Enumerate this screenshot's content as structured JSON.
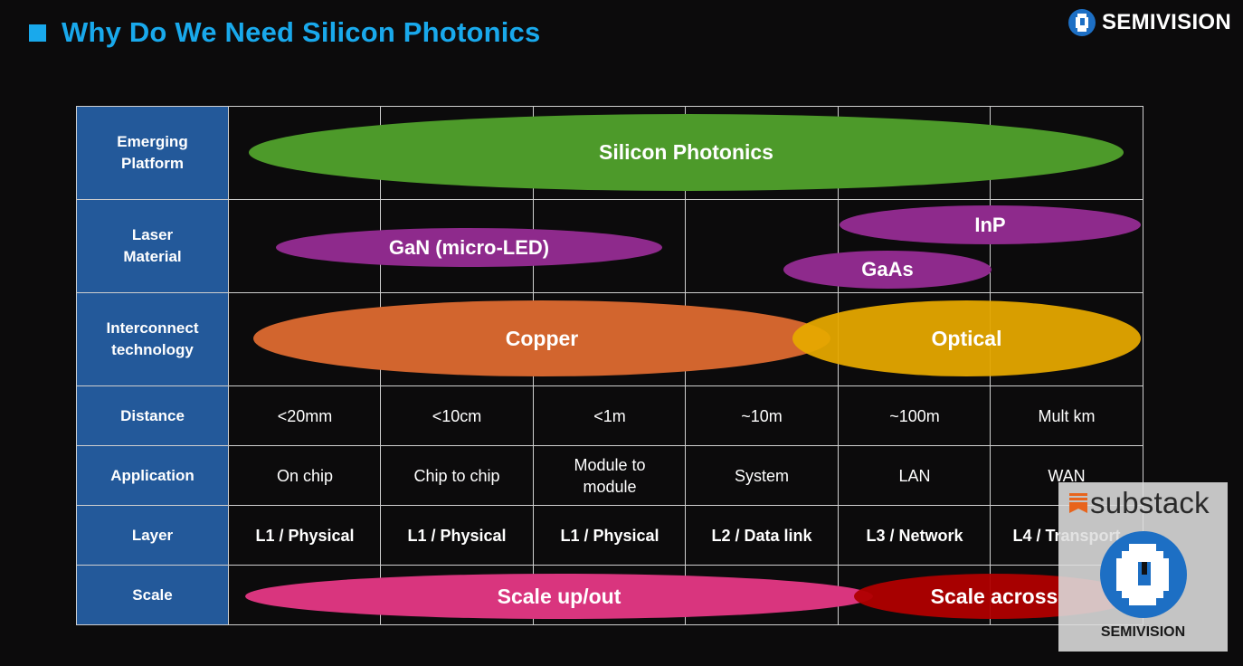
{
  "header": {
    "title": "Why Do We Need Silicon Photonics"
  },
  "brand": {
    "name": "SEMIVISION",
    "icon": "semivision-logo-icon"
  },
  "rows": [
    {
      "label": "Emerging\nPlatform"
    },
    {
      "label": "Laser\nMaterial"
    },
    {
      "label": "Interconnect\ntechnology"
    },
    {
      "label": "Distance"
    },
    {
      "label": "Application"
    },
    {
      "label": "Layer"
    },
    {
      "label": "Scale"
    }
  ],
  "distance": [
    "<20mm",
    "<10cm",
    "<1m",
    "~10m",
    "~100m",
    "Mult km"
  ],
  "application": [
    "On chip",
    "Chip to chip",
    "Module to\nmodule",
    "System",
    "LAN",
    "WAN"
  ],
  "layer": [
    "L1 / Physical",
    "L1 / Physical",
    "L1 / Physical",
    "L2 / Data link",
    "L3 / Network",
    "L4 / Transport"
  ],
  "ellipses": {
    "silicon_photonics": {
      "label": "Silicon Photonics",
      "color": "#4d9a2a"
    },
    "gan": {
      "label": "GaN (micro-LED)",
      "color": "#8e2a8c"
    },
    "inp": {
      "label": "InP",
      "color": "#8e2a8c"
    },
    "gaas": {
      "label": "GaAs",
      "color": "#8e2a8c"
    },
    "copper": {
      "label": "Copper",
      "color": "#d2652e"
    },
    "optical": {
      "label": "Optical",
      "color": "#e6a800"
    },
    "scale_up": {
      "label": "Scale up/out",
      "color": "#d9357e"
    },
    "scale_across": {
      "label": "Scale across",
      "color": "#b00000"
    }
  },
  "watermark": {
    "substack": "substack",
    "name": "SEMIVISION"
  }
}
